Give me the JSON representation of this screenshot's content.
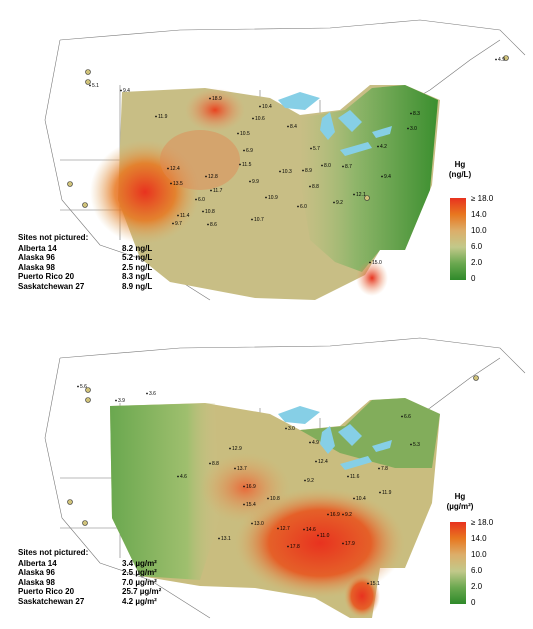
{
  "top_panel": {
    "legend": {
      "title_line1": "Hg",
      "title_line2": "(ng/L)",
      "ticks": [
        "≥ 18.0",
        "14.0",
        "10.0",
        "6.0",
        "2.0",
        "0"
      ],
      "colors": [
        "#e8321f",
        "#e8771f",
        "#dcae6a",
        "#c2c98a",
        "#6aa84f",
        "#2f8a2a"
      ]
    },
    "sites_not_pictured": {
      "header": "Sites not pictured:",
      "rows": [
        {
          "site": "Alberta 14",
          "value": "8.2 ng/L"
        },
        {
          "site": "Alaska 96",
          "value": "5.2 ng/L"
        },
        {
          "site": "Alaska 98",
          "value": "2.5 ng/L"
        },
        {
          "site": "Puerto Rico 20",
          "value": "8.3 ng/L"
        },
        {
          "site": "Saskatchewan 27",
          "value": "8.9 ng/L"
        }
      ]
    },
    "site_labels": [
      "4.9",
      "5.1",
      "9.4",
      "11.9",
      "18.9",
      "10.4",
      "10.6",
      "10.5",
      "6.9",
      "8.4",
      "12.4",
      "13.5",
      "12.8",
      "11.7",
      "11.5",
      "9.9",
      "10.8",
      "8.6",
      "11.4",
      "9.7",
      "6.0",
      "5.7",
      "4.2",
      "3.0",
      "8.3",
      "8.8",
      "6.0",
      "9.2",
      "12.1",
      "15.0",
      "10.9",
      "10.3",
      "8.9",
      "8.0",
      "8.7",
      "9.4",
      "10.7"
    ]
  },
  "bottom_panel": {
    "legend": {
      "title_line1": "Hg",
      "title_line2": "(µg/m²)",
      "ticks": [
        "≥ 18.0",
        "14.0",
        "10.0",
        "6.0",
        "2.0",
        "0"
      ],
      "colors": [
        "#e8321f",
        "#e8771f",
        "#dcae6a",
        "#c2c98a",
        "#6aa84f",
        "#2f8a2a"
      ]
    },
    "sites_not_pictured": {
      "header": "Sites not pictured:",
      "rows": [
        {
          "site": "Alberta 14",
          "value": "3.4 µg/m²"
        },
        {
          "site": "Alaska 96",
          "value": "2.5 µg/m²"
        },
        {
          "site": "Alaska 98",
          "value": "7.0 µg/m²"
        },
        {
          "site": "Puerto Rico 20",
          "value": "25.7 µg/m²"
        },
        {
          "site": "Saskatchewan 27",
          "value": "4.2 µg/m²"
        }
      ]
    },
    "site_labels": [
      "5.6",
      "3.9",
      "3.6",
      "4.6",
      "8.8",
      "12.9",
      "13.7",
      "16.9",
      "15.4",
      "13.0",
      "10.8",
      "12.7",
      "17.8",
      "14.6",
      "11.0",
      "16.9",
      "9.2",
      "17.9",
      "10.4",
      "15.1",
      "11.9",
      "7.8",
      "5.3",
      "6.6",
      "4.9",
      "3.0",
      "9.2",
      "12.4",
      "11.6",
      "13.1"
    ]
  }
}
